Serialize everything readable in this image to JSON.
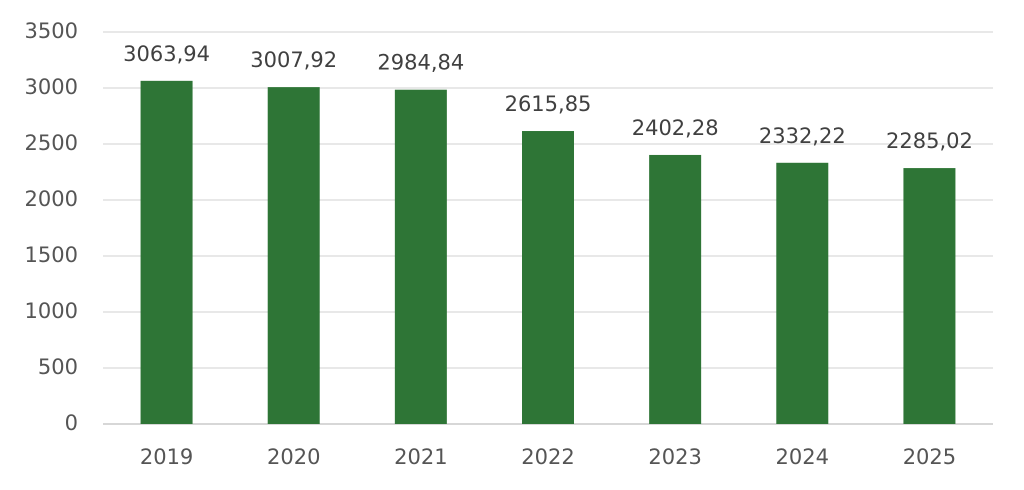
{
  "chart_data": {
    "type": "bar",
    "categories": [
      "2019",
      "2020",
      "2021",
      "2022",
      "2023",
      "2024",
      "2025"
    ],
    "values": [
      3063.94,
      3007.92,
      2984.84,
      2615.85,
      2402.28,
      2332.22,
      2285.02
    ],
    "value_labels": [
      "3063,94",
      "3007,92",
      "2984,84",
      "2615,85",
      "2402,28",
      "2332,22",
      "2285,02"
    ],
    "color": "#2e7536",
    "ylim": [
      0,
      3500
    ],
    "yticks": [
      0,
      500,
      1000,
      1500,
      2000,
      2500,
      3000,
      3500
    ],
    "grid": true
  }
}
